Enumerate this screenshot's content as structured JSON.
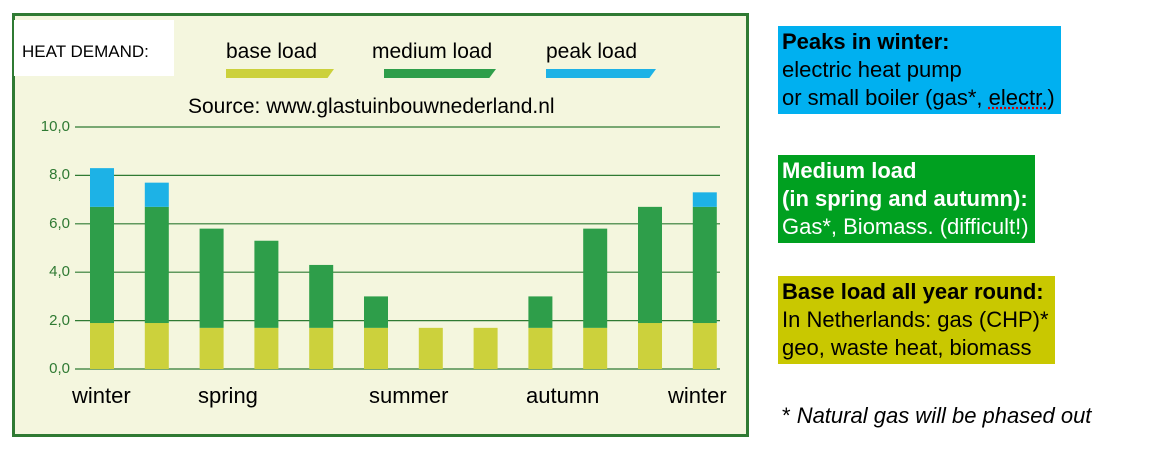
{
  "chart_data": {
    "type": "bar",
    "stacked": true,
    "title": "HEAT DEMAND:",
    "subtitle": "Source: www.glastuinbouwnederland.nl",
    "categories": [
      "",
      "",
      "",
      "",
      "",
      "",
      "",
      "",
      "",
      "",
      "",
      ""
    ],
    "series": [
      {
        "name": "base load",
        "color": "#ccd13c",
        "values": [
          1.9,
          1.9,
          1.7,
          1.7,
          1.7,
          1.7,
          1.7,
          1.7,
          1.7,
          1.7,
          1.9,
          1.9
        ]
      },
      {
        "name": "medium load",
        "color": "#2e9e4a",
        "values": [
          4.8,
          4.8,
          4.1,
          3.6,
          2.6,
          1.3,
          0,
          0,
          1.3,
          4.1,
          4.8,
          4.8
        ]
      },
      {
        "name": "peak load",
        "color": "#1db2e6",
        "values": [
          1.6,
          1.0,
          0,
          0,
          0,
          0,
          0,
          0,
          0,
          0,
          0,
          0.6
        ]
      }
    ],
    "ylim": [
      0,
      10
    ],
    "yticks": [
      "10,0",
      "8,0",
      "6,0",
      "4,0",
      "2,0",
      "0,0"
    ],
    "season_labels": [
      "winter",
      "spring",
      "summer",
      "autumn",
      "winter"
    ],
    "grid": true,
    "legend_position": "top"
  },
  "info": {
    "peak": {
      "title": "Peaks in winter:",
      "line1": "electric heat pump",
      "line2a": "or small boiler (gas*, ",
      "line2b": "electr.",
      "line2c": ")",
      "color": "#00b0f0"
    },
    "medium": {
      "title1": "Medium load",
      "title2": "(in spring and autumn):",
      "line1": "Gas*, Biomass.  (difficult!)",
      "color": "#00a020"
    },
    "base": {
      "title": "Base load all year round:",
      "line1": "In Netherlands: gas (CHP)*",
      "line2": "geo, waste heat, biomass",
      "color": "#c9c800"
    },
    "note_star": "*",
    "note_text": "Natural gas will be phased out"
  }
}
